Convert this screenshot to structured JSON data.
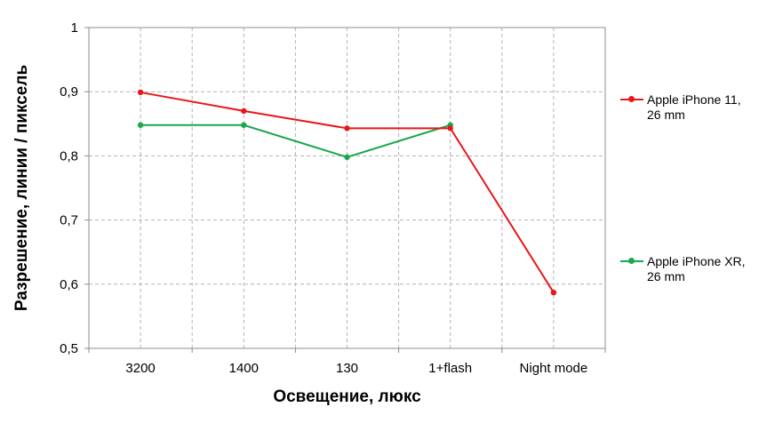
{
  "chart_data": {
    "type": "line",
    "title": "",
    "xlabel": "Освещение, люкс",
    "ylabel": "Разрешение, линии / пиксель",
    "categories": [
      "3200",
      "1400",
      "130",
      "1+flash",
      "Night mode"
    ],
    "ylim": [
      0.5,
      1
    ],
    "yticks": [
      "0,5",
      "0,6",
      "0,7",
      "0,8",
      "0,9",
      "1"
    ],
    "grid": true,
    "legend_position": "right",
    "series": [
      {
        "name": "Apple iPhone 11,\n26 mm",
        "color": "#e8171b",
        "values": [
          0.899,
          0.87,
          0.843,
          0.843,
          0.587
        ]
      },
      {
        "name": "Apple iPhone XR,\n26 mm",
        "color": "#1aa84d",
        "values": [
          0.848,
          0.848,
          0.798,
          0.848,
          null
        ]
      }
    ]
  }
}
